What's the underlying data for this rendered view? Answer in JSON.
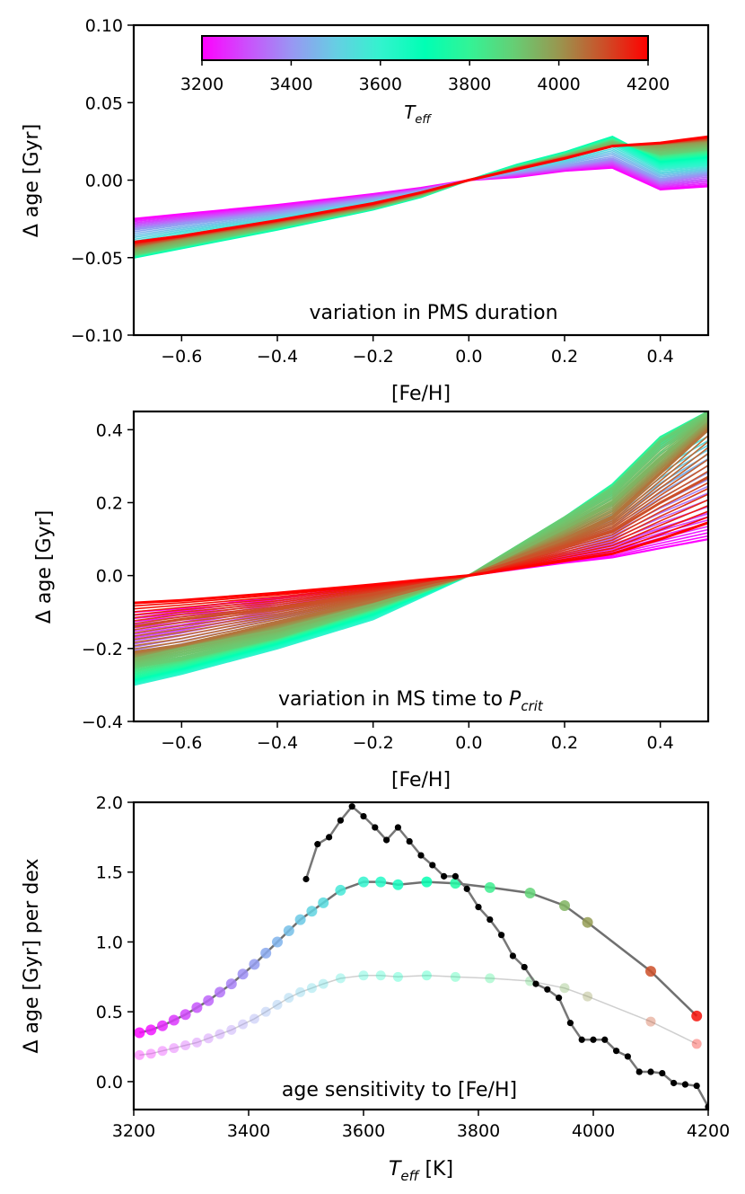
{
  "chart_data": [
    {
      "type": "line",
      "panel": "top",
      "annotation": "variation in PMS duration",
      "xlabel": "[Fe/H]",
      "ylabel": "Δ age [Gyr]",
      "xlim": [
        -0.7,
        0.5
      ],
      "ylim": [
        -0.1,
        0.1
      ],
      "xticks": [
        -0.6,
        -0.4,
        -0.2,
        0.0,
        0.2,
        0.4
      ],
      "xtick_labels": [
        "−0.6",
        "−0.4",
        "−0.2",
        "0.0",
        "0.2",
        "0.4"
      ],
      "yticks": [
        -0.1,
        -0.05,
        0.0,
        0.05,
        0.1
      ],
      "ytick_labels": [
        "−0.10",
        "−0.05",
        "0.00",
        "0.05",
        "0.10"
      ],
      "x": [
        -0.7,
        -0.6,
        -0.4,
        -0.2,
        -0.1,
        0.0,
        0.1,
        0.2,
        0.3,
        0.4,
        0.5
      ],
      "colorbar": {
        "label": "T_eff",
        "range": [
          3200,
          4200
        ],
        "ticks": [
          3200,
          3400,
          3600,
          3800,
          4000,
          4200
        ],
        "tick_labels": [
          "3200",
          "3400",
          "3600",
          "3800",
          "4000",
          "4200"
        ],
        "colormap": "rainbow"
      },
      "series": [
        {
          "teff": 3200,
          "values": [
            -0.025,
            -0.022,
            -0.016,
            -0.009,
            -0.005,
            0.0,
            0.002,
            0.006,
            0.008,
            -0.006,
            -0.004
          ]
        },
        {
          "teff": 3400,
          "values": [
            -0.032,
            -0.028,
            -0.021,
            -0.012,
            -0.007,
            0.0,
            0.005,
            0.009,
            0.014,
            0.0,
            0.004
          ]
        },
        {
          "teff": 3600,
          "values": [
            -0.042,
            -0.036,
            -0.027,
            -0.016,
            -0.009,
            0.0,
            0.008,
            0.015,
            0.024,
            0.008,
            0.01
          ]
        },
        {
          "teff": 3700,
          "values": [
            -0.05,
            -0.044,
            -0.032,
            -0.019,
            -0.011,
            0.0,
            0.01,
            0.018,
            0.028,
            0.012,
            0.015
          ]
        },
        {
          "teff": 3900,
          "values": [
            -0.048,
            -0.042,
            -0.03,
            -0.018,
            -0.01,
            0.0,
            0.008,
            0.016,
            0.025,
            0.017,
            0.02
          ]
        },
        {
          "teff": 4000,
          "values": [
            -0.044,
            -0.038,
            -0.028,
            -0.017,
            -0.009,
            0.0,
            0.008,
            0.015,
            0.022,
            0.023,
            0.025
          ]
        },
        {
          "teff": 4200,
          "values": [
            -0.04,
            -0.036,
            -0.026,
            -0.015,
            -0.008,
            0.0,
            0.007,
            0.014,
            0.022,
            0.024,
            0.028
          ]
        }
      ]
    },
    {
      "type": "line",
      "panel": "middle",
      "annotation": "variation in MS time to ",
      "annotation_symbol": "P",
      "annotation_subscript": "crit",
      "xlabel": "[Fe/H]",
      "ylabel": "Δ age [Gyr]",
      "xlim": [
        -0.7,
        0.5
      ],
      "ylim": [
        -0.4,
        0.45
      ],
      "xticks": [
        -0.6,
        -0.4,
        -0.2,
        0.0,
        0.2,
        0.4
      ],
      "xtick_labels": [
        "−0.6",
        "−0.4",
        "−0.2",
        "0.0",
        "0.2",
        "0.4"
      ],
      "yticks": [
        -0.4,
        -0.2,
        0.0,
        0.2,
        0.4
      ],
      "ytick_labels": [
        "−0.4",
        "−0.2",
        "0.0",
        "0.2",
        "0.4"
      ],
      "x": [
        -0.7,
        -0.6,
        -0.4,
        -0.2,
        -0.1,
        0.0,
        0.2,
        0.3,
        0.4,
        0.5
      ],
      "series": [
        {
          "teff": 3200,
          "values": [
            -0.1,
            -0.09,
            -0.06,
            -0.03,
            -0.015,
            0.0,
            0.035,
            0.05,
            0.075,
            0.1
          ]
        },
        {
          "teff": 3300,
          "values": [
            -0.17,
            -0.15,
            -0.1,
            -0.05,
            -0.025,
            0.0,
            0.06,
            0.085,
            0.13,
            0.17
          ]
        },
        {
          "teff": 3450,
          "values": [
            -0.24,
            -0.21,
            -0.15,
            -0.08,
            -0.04,
            0.0,
            0.1,
            0.15,
            0.24,
            0.32
          ]
        },
        {
          "teff": 3600,
          "values": [
            -0.3,
            -0.27,
            -0.2,
            -0.12,
            -0.06,
            0.0,
            0.15,
            0.22,
            0.35,
            0.42
          ]
        },
        {
          "teff": 3750,
          "values": [
            -0.28,
            -0.25,
            -0.18,
            -0.1,
            -0.05,
            0.0,
            0.16,
            0.25,
            0.38,
            0.45
          ]
        },
        {
          "teff": 3900,
          "values": [
            -0.25,
            -0.23,
            -0.17,
            -0.09,
            -0.045,
            0.0,
            0.16,
            0.24,
            0.37,
            0.45
          ]
        },
        {
          "teff": 3950,
          "values": [
            -0.23,
            -0.2,
            -0.15,
            -0.08,
            -0.04,
            0.0,
            0.13,
            0.2,
            0.32,
            0.43
          ]
        },
        {
          "teff": 4050,
          "values": [
            -0.21,
            -0.19,
            -0.13,
            -0.07,
            -0.035,
            0.0,
            0.1,
            0.16,
            0.28,
            0.4
          ]
        },
        {
          "teff": 4100,
          "values": [
            -0.14,
            -0.12,
            -0.09,
            -0.05,
            -0.025,
            0.0,
            0.08,
            0.12,
            0.2,
            0.27
          ]
        },
        {
          "teff": 4200,
          "values": [
            -0.075,
            -0.068,
            -0.048,
            -0.025,
            -0.012,
            0.0,
            0.04,
            0.06,
            0.1,
            0.145
          ]
        }
      ]
    },
    {
      "type": "scatter",
      "panel": "bottom",
      "annotation": "age sensitivity to [Fe/H]",
      "xlabel_symbol": "T",
      "xlabel_subscript": "eff",
      "xlabel_suffix": " [K]",
      "ylabel": "Δ age [Gyr] per dex",
      "xlim": [
        3200,
        4200
      ],
      "ylim": [
        -0.2,
        2.0
      ],
      "xticks": [
        3200,
        3400,
        3600,
        3800,
        4000,
        4200
      ],
      "xtick_labels": [
        "3200",
        "3400",
        "3600",
        "3800",
        "4000",
        "4200"
      ],
      "yticks": [
        0.0,
        0.5,
        1.0,
        1.5,
        2.0
      ],
      "ytick_labels": [
        "0.0",
        "0.5",
        "1.0",
        "1.5",
        "2.0"
      ],
      "series": [
        {
          "name": "",
          "style": "black-dots-gray-line",
          "x": [
            3500,
            3520,
            3540,
            3560,
            3580,
            3600,
            3620,
            3640,
            3660,
            3680,
            3700,
            3720,
            3740,
            3760,
            3780,
            3800,
            3820,
            3840,
            3860,
            3880,
            3900,
            3920,
            3940,
            3960,
            3980,
            4000,
            4020,
            4040,
            4060,
            4080,
            4100,
            4120,
            4140,
            4160,
            4180,
            4200
          ],
          "y": [
            1.45,
            1.7,
            1.75,
            1.87,
            1.97,
            1.9,
            1.82,
            1.73,
            1.82,
            1.72,
            1.62,
            1.55,
            1.47,
            1.47,
            1.38,
            1.25,
            1.16,
            1.05,
            0.9,
            0.82,
            0.7,
            0.66,
            0.6,
            0.42,
            0.3,
            0.3,
            0.3,
            0.22,
            0.18,
            0.07,
            0.07,
            0.06,
            -0.01,
            -0.02,
            -0.03,
            -0.18
          ]
        },
        {
          "name": "",
          "style": "teff-colored-dots-dark-gray-line",
          "x": [
            3210,
            3230,
            3250,
            3270,
            3290,
            3310,
            3330,
            3350,
            3370,
            3390,
            3410,
            3430,
            3450,
            3470,
            3490,
            3510,
            3530,
            3560,
            3600,
            3630,
            3660,
            3710,
            3760,
            3820,
            3890,
            3950,
            3990,
            4100,
            4180
          ],
          "y": [
            0.35,
            0.37,
            0.4,
            0.44,
            0.48,
            0.53,
            0.58,
            0.64,
            0.7,
            0.77,
            0.84,
            0.92,
            1.0,
            1.08,
            1.16,
            1.22,
            1.28,
            1.37,
            1.43,
            1.43,
            1.41,
            1.43,
            1.42,
            1.39,
            1.35,
            1.26,
            1.14,
            0.79,
            0.47
          ]
        },
        {
          "name": "",
          "style": "faint-teff-colored-dots-light-gray-line",
          "x": [
            3210,
            3230,
            3250,
            3270,
            3290,
            3310,
            3330,
            3350,
            3370,
            3390,
            3410,
            3430,
            3450,
            3470,
            3490,
            3510,
            3530,
            3560,
            3600,
            3630,
            3660,
            3710,
            3760,
            3820,
            3890,
            3950,
            3990,
            4100,
            4180
          ],
          "y": [
            0.19,
            0.2,
            0.22,
            0.24,
            0.26,
            0.28,
            0.31,
            0.34,
            0.37,
            0.41,
            0.45,
            0.5,
            0.55,
            0.6,
            0.64,
            0.67,
            0.7,
            0.74,
            0.76,
            0.76,
            0.75,
            0.76,
            0.75,
            0.74,
            0.72,
            0.67,
            0.61,
            0.43,
            0.27
          ]
        }
      ]
    }
  ]
}
